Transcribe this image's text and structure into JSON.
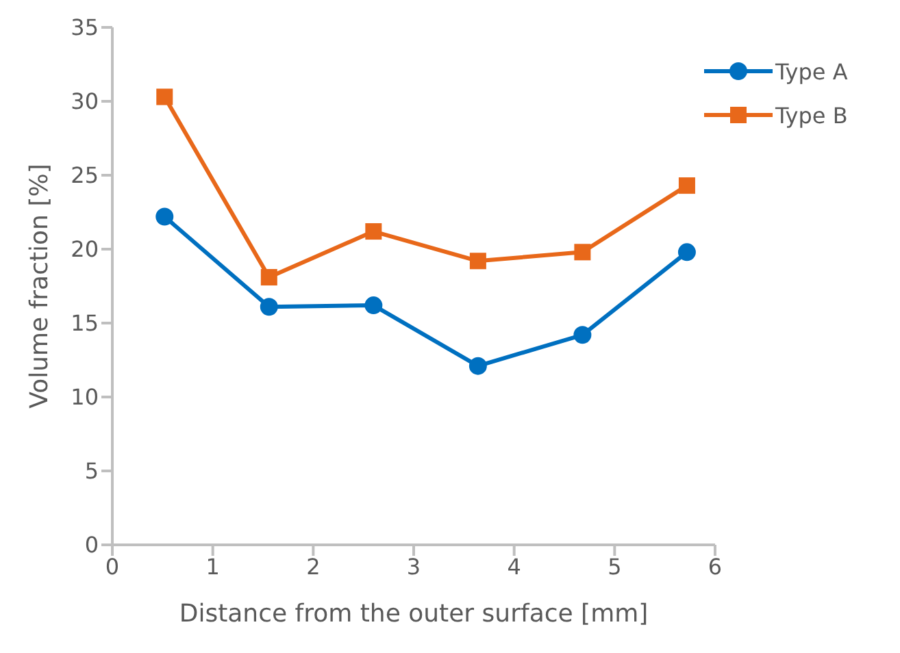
{
  "chart_data": {
    "type": "line",
    "xlabel": "Distance from the outer surface [mm]",
    "ylabel": "Volume fraction [%]",
    "x": [
      0.52,
      1.56,
      2.6,
      3.64,
      4.68,
      5.72
    ],
    "series": [
      {
        "name": "Type A",
        "color": "#0070c0",
        "marker": "circle",
        "values": [
          22.2,
          16.1,
          16.2,
          12.1,
          14.2,
          19.8
        ]
      },
      {
        "name": "Type B",
        "color": "#e8681a",
        "marker": "square",
        "values": [
          30.3,
          18.1,
          21.2,
          19.2,
          19.8,
          24.3
        ]
      }
    ],
    "xlim": [
      0,
      6
    ],
    "xticks": [
      0,
      1,
      2,
      3,
      4,
      5,
      6
    ],
    "ylim": [
      0,
      35
    ],
    "yticks": [
      0,
      5,
      10,
      15,
      20,
      25,
      30,
      35
    ],
    "grid": false,
    "legend": "top right",
    "line_style": "solid"
  }
}
